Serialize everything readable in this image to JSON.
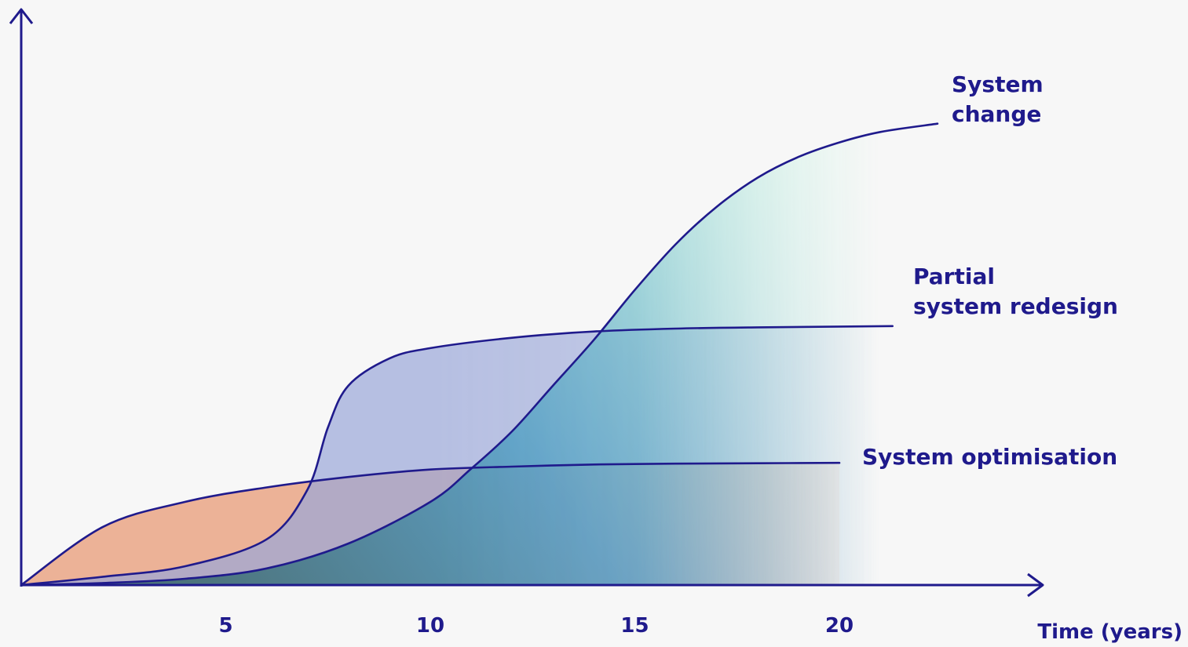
{
  "chart_data": {
    "type": "area",
    "xlabel": "Time (years)",
    "ylabel": "",
    "x_ticks": [
      "5",
      "10",
      "15",
      "20"
    ],
    "xlim": [
      0,
      25
    ],
    "ylim": [
      0,
      1.2
    ],
    "grid": false,
    "legend": "labels at curve ends",
    "colors": {
      "line": "#1f1a8c",
      "optimisation_fill": "#e8a07e",
      "redesign_fill": "#9aa6d8",
      "change_fill_start": "#3f6e73",
      "change_fill_mid": "#4e9fc4",
      "change_fill_end": "#a8f0d8",
      "background": "#f7f7f7"
    },
    "series": [
      {
        "name": "System optimisation",
        "label_lines": [
          "System optimisation"
        ],
        "points": [
          [
            0,
            0
          ],
          [
            2,
            0.14
          ],
          [
            4,
            0.2
          ],
          [
            6,
            0.235
          ],
          [
            8,
            0.26
          ],
          [
            10,
            0.278
          ],
          [
            12,
            0.285
          ],
          [
            14,
            0.29
          ],
          [
            16,
            0.292
          ],
          [
            18,
            0.293
          ],
          [
            20,
            0.294
          ]
        ]
      },
      {
        "name": "Partial system redesign",
        "label_lines": [
          "Partial",
          "system redesign"
        ],
        "points": [
          [
            0,
            0
          ],
          [
            2,
            0.02
          ],
          [
            4,
            0.045
          ],
          [
            6,
            0.11
          ],
          [
            7,
            0.23
          ],
          [
            7.5,
            0.38
          ],
          [
            8,
            0.48
          ],
          [
            9,
            0.545
          ],
          [
            10,
            0.57
          ],
          [
            12,
            0.595
          ],
          [
            14,
            0.61
          ],
          [
            16,
            0.617
          ],
          [
            18,
            0.62
          ],
          [
            21.3,
            0.623
          ]
        ]
      },
      {
        "name": "System change",
        "label_lines": [
          "System",
          "change"
        ],
        "points": [
          [
            0,
            0
          ],
          [
            2,
            0.005
          ],
          [
            4,
            0.015
          ],
          [
            6,
            0.04
          ],
          [
            8,
            0.1
          ],
          [
            10,
            0.2
          ],
          [
            11,
            0.28
          ],
          [
            12,
            0.37
          ],
          [
            13,
            0.48
          ],
          [
            14,
            0.59
          ],
          [
            15,
            0.71
          ],
          [
            16,
            0.82
          ],
          [
            17,
            0.91
          ],
          [
            18,
            0.98
          ],
          [
            19,
            1.03
          ],
          [
            20,
            1.065
          ],
          [
            21,
            1.09
          ],
          [
            22.4,
            1.11
          ]
        ]
      }
    ]
  }
}
